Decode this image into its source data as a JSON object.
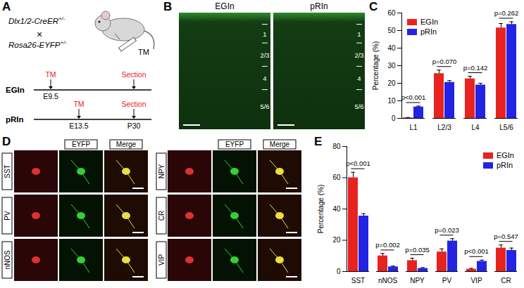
{
  "panel_labels": [
    "A",
    "B",
    "C",
    "D",
    "E"
  ],
  "schematic": {
    "cross": [
      {
        "gene": "Dlx1/2-CreER",
        "genotype": "+/-"
      },
      {
        "gene": "Rosa26-EYFP",
        "genotype": "+/-"
      }
    ],
    "cross_symbol": "×",
    "injection": "TM",
    "endpoint": "Section",
    "endpoint_age": "P30",
    "timelines": [
      {
        "name": "EGIn",
        "tm_age": "E9.5"
      },
      {
        "name": "pRIn",
        "tm_age": "E13.5"
      }
    ]
  },
  "micrographs": {
    "titles": [
      "EGIn",
      "pRIn"
    ],
    "layers": [
      "1",
      "2/3",
      "4",
      "5/6"
    ]
  },
  "stains": {
    "headers": [
      "EYFP",
      "Merge"
    ],
    "left_rows": [
      "SST",
      "PV",
      "nNOS"
    ],
    "right_rows": [
      "NPY",
      "CR",
      "VIP"
    ]
  },
  "chart_data": [
    {
      "type": "bar",
      "ylabel": "Percentage (%)",
      "categories": [
        "L1",
        "L2/3",
        "L4",
        "L5/6"
      ],
      "series": [
        {
          "name": "EGIn",
          "color": "#e8231f",
          "values": [
            0.3,
            25.5,
            22.5,
            51.5
          ],
          "errors": [
            0.2,
            2,
            1.5,
            2.5
          ]
        },
        {
          "name": "pRIn",
          "color": "#2323e6",
          "values": [
            6.5,
            20.5,
            19,
            53.5
          ],
          "errors": [
            0.5,
            1,
            1,
            1.5
          ]
        }
      ],
      "p_values": [
        "p<0.001",
        "p=0.070",
        "p=0.142",
        "p=0.262"
      ],
      "ylim": [
        0,
        60
      ],
      "yticks": [
        0,
        10,
        20,
        30,
        40,
        50,
        60
      ],
      "legend": "top-left"
    },
    {
      "type": "bar",
      "ylabel": "Percentage (%)",
      "categories": [
        "SST",
        "nNOS",
        "NPY",
        "PV",
        "VIP",
        "CR"
      ],
      "series": [
        {
          "name": "EGIn",
          "color": "#e8231f",
          "values": [
            60,
            10,
            7,
            12.5,
            1.5,
            15
          ],
          "errors": [
            3.5,
            1.5,
            1.5,
            2,
            0.5,
            2
          ]
        },
        {
          "name": "pRIn",
          "color": "#2323e6",
          "values": [
            35.5,
            3,
            2,
            19.5,
            6.5,
            13.5
          ],
          "errors": [
            1.5,
            0.5,
            0.5,
            1.5,
            0.8,
            1.5
          ]
        }
      ],
      "p_values": [
        "p<0.001",
        "p=0.002",
        "p=0.035",
        "p=0.023",
        "p<0.001",
        "p=0.547"
      ],
      "ylim": [
        0,
        80
      ],
      "yticks": [
        0,
        20,
        40,
        60,
        80
      ],
      "legend": "top-right"
    }
  ]
}
